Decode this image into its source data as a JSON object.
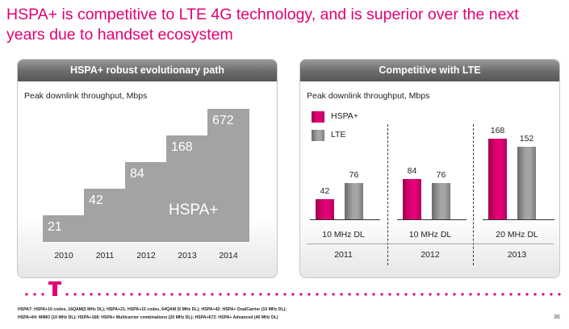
{
  "slide": {
    "title_line1": "HSPA+ is competitive to LTE 4G technology, and is superior over the next",
    "title_line2": "years due to handset ecosystem"
  },
  "left_panel": {
    "header": "HSPA+ robust evolutionary path",
    "subtitle": "Peak downlink throughput, Mbps",
    "series_label": "HSPA+"
  },
  "right_panel": {
    "header": "Competitive with LTE",
    "subtitle": "Peak downlink throughput, Mbps"
  },
  "chart_data": [
    {
      "type": "bar",
      "title": "HSPA+ robust evolutionary path",
      "ylabel": "Peak downlink throughput, Mbps",
      "categories": [
        "2010",
        "2011",
        "2012",
        "2013",
        "2014"
      ],
      "series": [
        {
          "name": "HSPA+",
          "values": [
            21,
            42,
            84,
            168,
            672
          ]
        }
      ]
    },
    {
      "type": "bar",
      "title": "Competitive with LTE",
      "ylabel": "Peak downlink throughput, Mbps",
      "categories": [
        "2011",
        "2012",
        "2013"
      ],
      "bandwidth_labels": [
        "10 MHz DL",
        "10 MHz DL",
        "20 MHz DL"
      ],
      "series": [
        {
          "name": "HSPA+",
          "values": [
            42,
            84,
            168
          ],
          "color": "#e20074"
        },
        {
          "name": "LTE",
          "values": [
            76,
            76,
            152
          ],
          "color": "#a5a5a5"
        }
      ],
      "legend": "top-left"
    }
  ],
  "footnotes": {
    "line1": "HSPA7: HSPA+10 codes, 16QAM(5 MHz DL); HSPA+21: HSPA+15 codes, 64QAM (5 MHz DL); HSPA+42: HSPA+ DualCarrier (10 MHz DL);",
    "line2": "HSPA+84: MIMO (10 MHz DL); HSPA+168: HSPA+ Multicarrier combinations (20 MHz DL); HSPA+672: HSPA+ Advanced (40 MHz DL)"
  },
  "page_number": "36",
  "colors": {
    "brand": "#e20074",
    "gray": "#a3a3a3"
  }
}
